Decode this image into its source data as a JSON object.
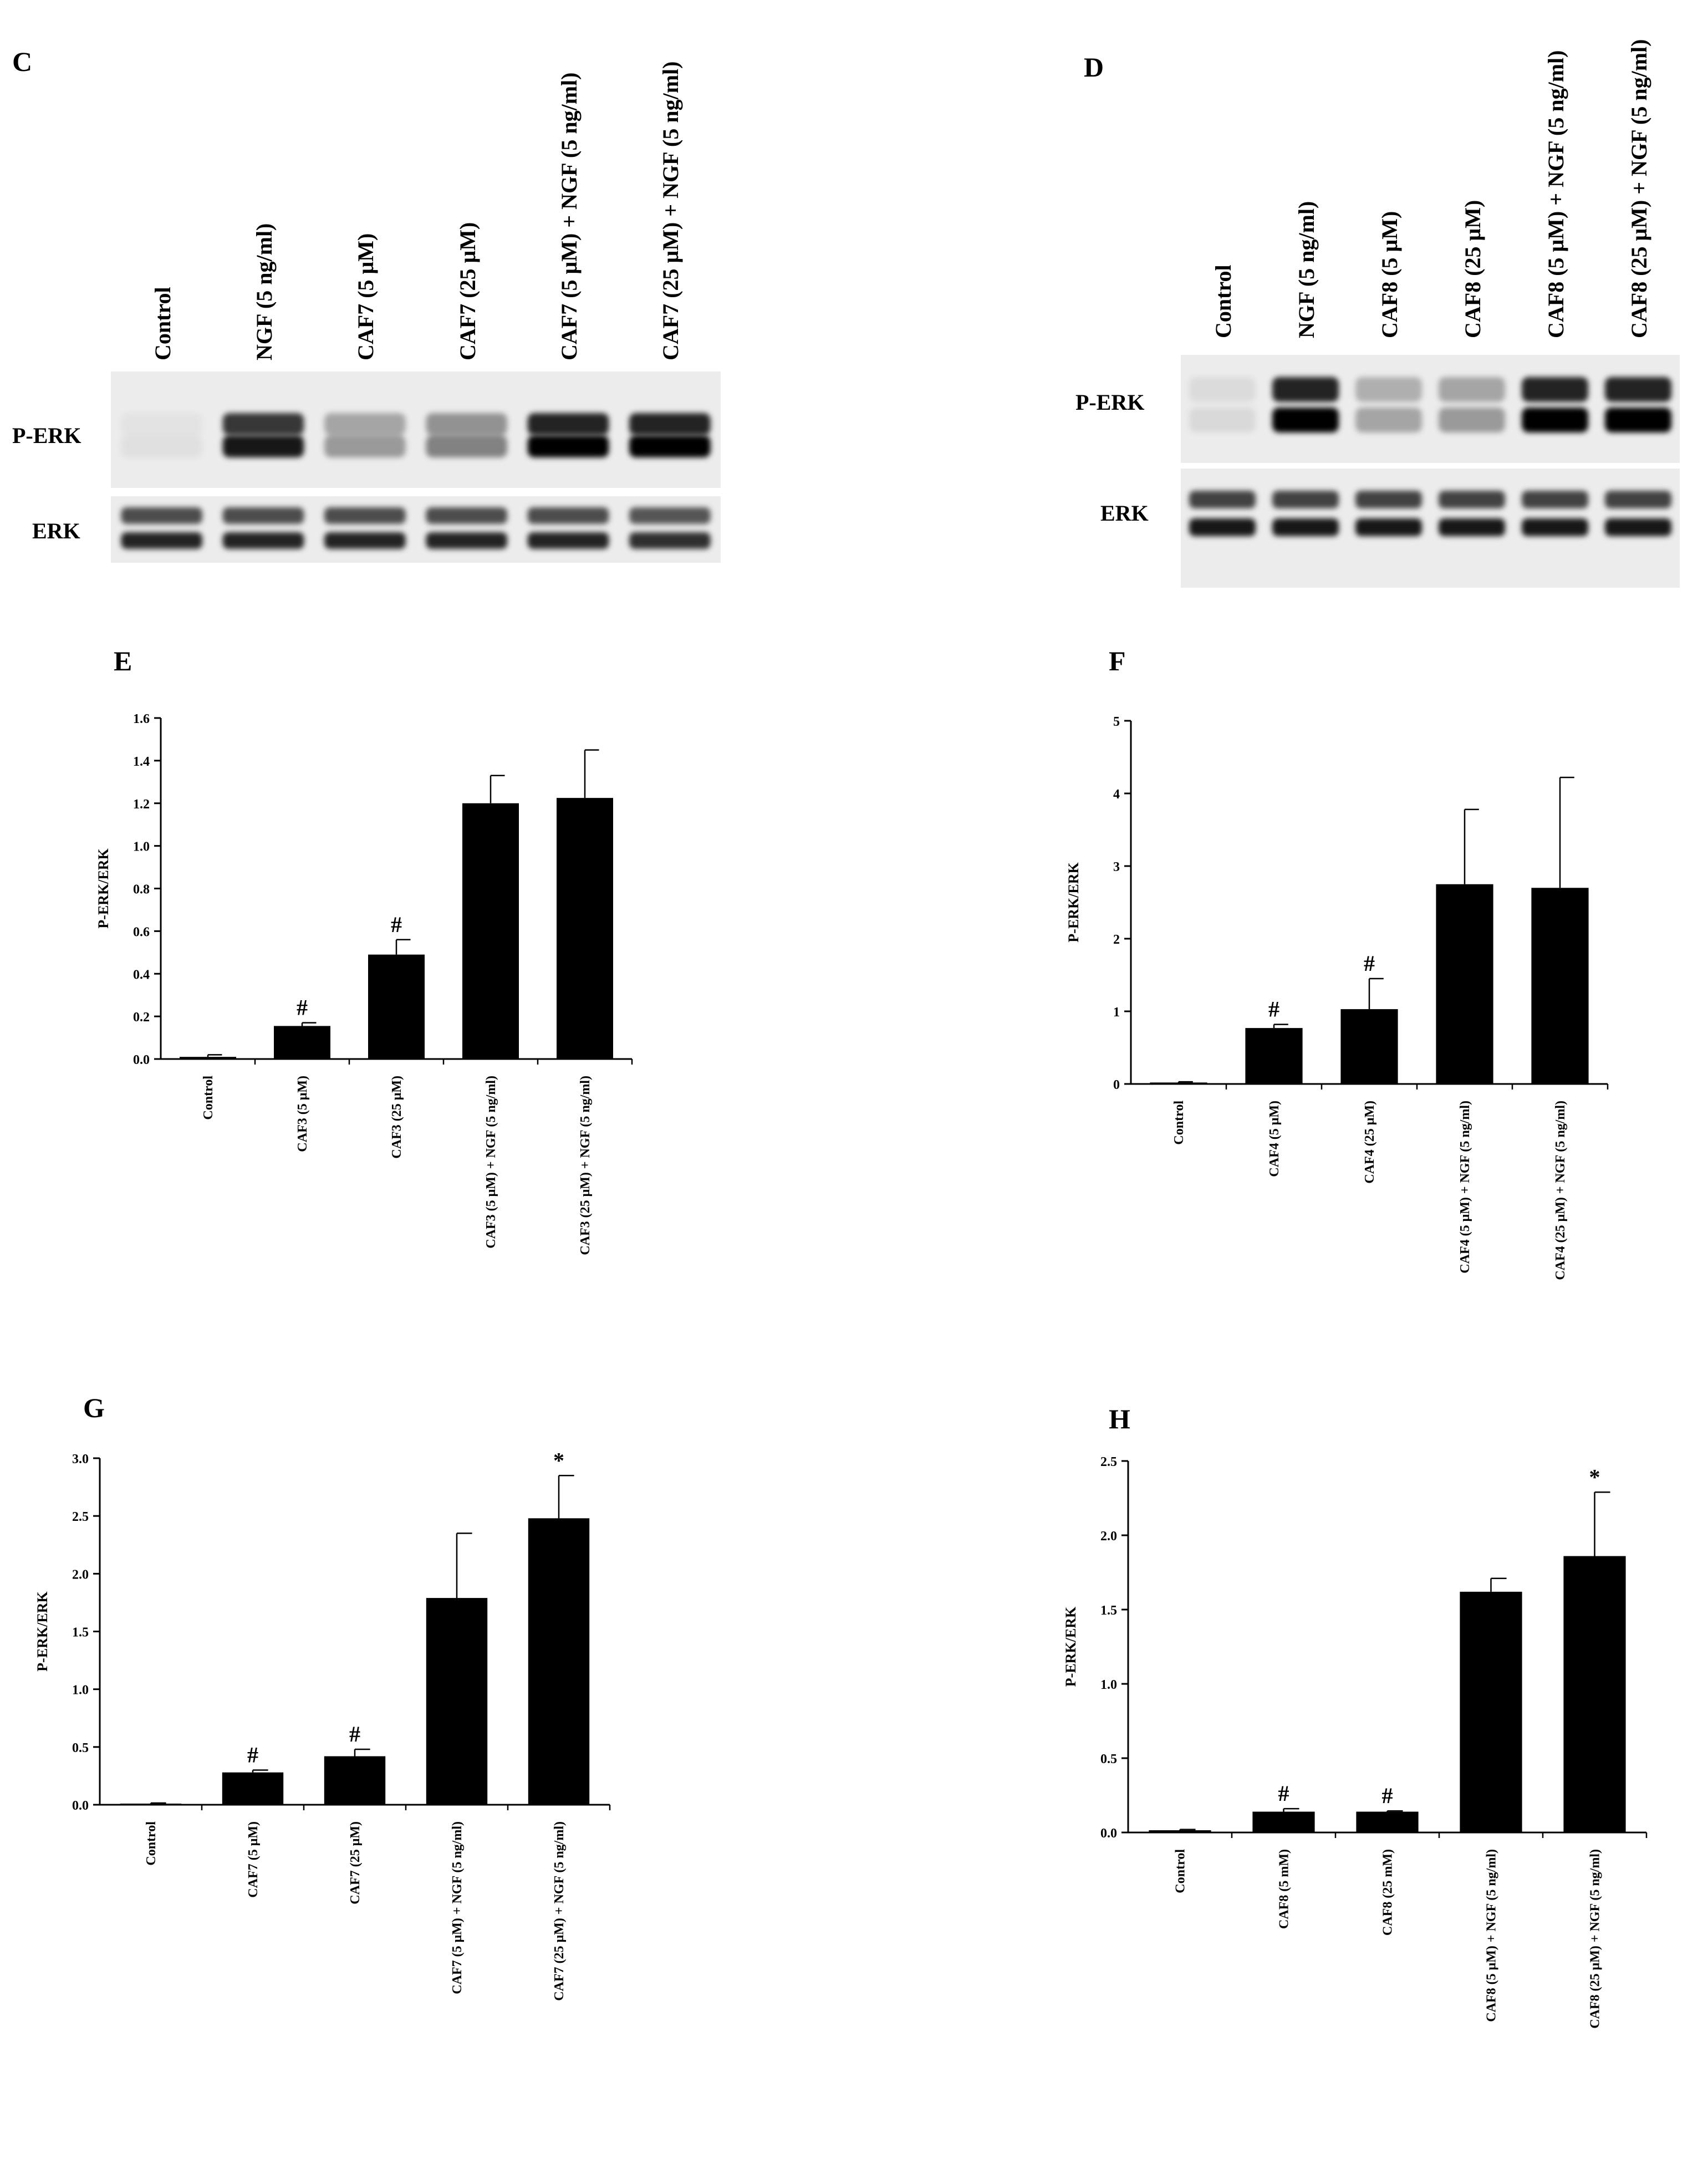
{
  "panels": {
    "C": {
      "letter": "C",
      "lanes": [
        "Control",
        "NGF (5 ng/ml)",
        "CAF7 (5 μM)",
        "CAF7 (25 μM)",
        "CAF7 (5 μM) + NGF (5 ng/ml)",
        "CAF7 (25 μM) + NGF (5 ng/ml)"
      ],
      "rows": [
        "P-ERK",
        "ERK"
      ],
      "perk_intensity": [
        0.05,
        0.9,
        0.35,
        0.45,
        1.0,
        1.0
      ],
      "erk_intensity": [
        0.85,
        0.85,
        0.85,
        0.85,
        0.85,
        0.8
      ]
    },
    "D": {
      "letter": "D",
      "lanes": [
        "Control",
        "NGF (5 ng/ml)",
        "CAF8 (5 μM)",
        "CAF8 (25 μM)",
        "CAF8 (5 μM) + NGF (5 ng/ml)",
        "CAF8 (25 μM) + NGF (5 ng/ml)"
      ],
      "rows": [
        "P-ERK",
        "ERK"
      ],
      "perk_intensity": [
        0.08,
        1.0,
        0.3,
        0.35,
        1.0,
        1.0
      ],
      "erk_intensity": [
        0.9,
        0.9,
        0.9,
        0.9,
        0.9,
        0.9
      ]
    }
  },
  "chart_data": [
    {
      "id": "E",
      "letter": "E",
      "type": "bar",
      "ylabel": "P-ERK/ERK",
      "ylim": [
        0,
        1.6
      ],
      "yticks": [
        "0.0",
        "0.2",
        "0.4",
        "0.6",
        "0.8",
        "1.0",
        "1.2",
        "1.4",
        "1.6"
      ],
      "categories": [
        "Control",
        "CAF3 (5 μM)",
        "CAF3 (25 μM)",
        "CAF3 (5 μM) + NGF (5 ng/ml)",
        "CAF3 (25 μM) + NGF (5 ng/ml)"
      ],
      "values": [
        0.01,
        0.155,
        0.49,
        1.2,
        1.225
      ],
      "errors": [
        0.01,
        0.015,
        0.07,
        0.13,
        0.225
      ],
      "marks": [
        "",
        "#",
        "#",
        "",
        ""
      ]
    },
    {
      "id": "F",
      "letter": "F",
      "type": "bar",
      "ylabel": "P-ERK/ERK",
      "ylim": [
        0,
        5
      ],
      "yticks": [
        "0",
        "1",
        "2",
        "3",
        "4",
        "5"
      ],
      "categories": [
        "Control",
        "CAF4 (5 μM)",
        "CAF4 (25 μM)",
        "CAF4 (5 μM) + NGF (5 ng/ml)",
        "CAF4 (25 μM) + NGF (5 ng/ml)"
      ],
      "values": [
        0.02,
        0.77,
        1.03,
        2.75,
        2.7
      ],
      "errors": [
        0.01,
        0.05,
        0.42,
        1.03,
        1.52
      ],
      "marks": [
        "",
        "#",
        "#",
        "",
        ""
      ]
    },
    {
      "id": "G",
      "letter": "G",
      "type": "bar",
      "ylabel": "P-ERK/ERK",
      "ylim": [
        0,
        3
      ],
      "yticks": [
        "0.0",
        "0.5",
        "1.0",
        "1.5",
        "2.0",
        "2.5",
        "3.0"
      ],
      "categories": [
        "Control",
        "CAF7 (5 μM)",
        "CAF7 (25 μM)",
        "CAF7 (5 μM) + NGF (5 ng/ml)",
        "CAF7 (25 μM) + NGF (5 ng/ml)"
      ],
      "values": [
        0.01,
        0.28,
        0.42,
        1.79,
        2.48
      ],
      "errors": [
        0.005,
        0.02,
        0.06,
        0.56,
        0.37
      ],
      "marks": [
        "",
        "#",
        "#",
        "",
        "*"
      ]
    },
    {
      "id": "H",
      "letter": "H",
      "type": "bar",
      "ylabel": "P-ERK/ERK",
      "ylim": [
        0,
        2.5
      ],
      "yticks": [
        "0.0",
        "0.5",
        "1.0",
        "1.5",
        "2.0",
        "2.5"
      ],
      "categories": [
        "Control",
        "CAF8 (5 mM)",
        "CAF8 (25 mM)",
        "CAF8 (5 μM) + NGF (5 ng/ml)",
        "CAF8 (25 μM) + NGF (5 ng/ml)"
      ],
      "values": [
        0.015,
        0.14,
        0.14,
        1.62,
        1.86
      ],
      "errors": [
        0.005,
        0.02,
        0.005,
        0.09,
        0.43
      ],
      "marks": [
        "",
        "#",
        "#",
        "",
        "*"
      ]
    }
  ]
}
